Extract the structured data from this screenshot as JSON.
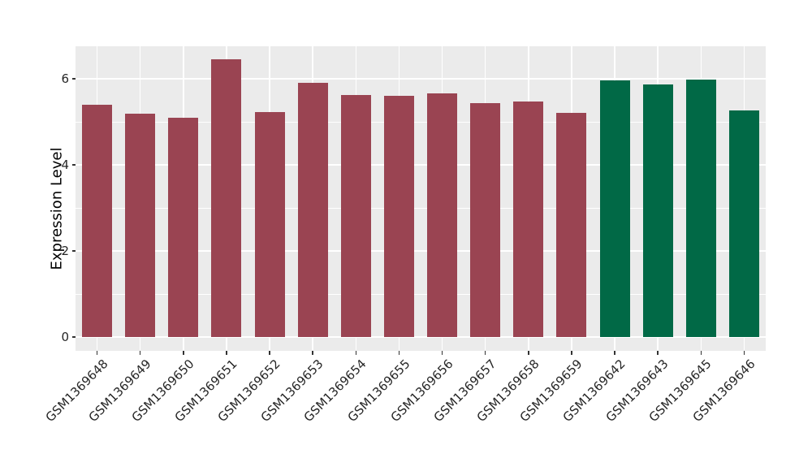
{
  "chart_data": {
    "type": "bar",
    "title": "",
    "xlabel": "",
    "ylabel": "Expression Level",
    "categories": [
      "GSM1369648",
      "GSM1369649",
      "GSM1369650",
      "GSM1369651",
      "GSM1369652",
      "GSM1369653",
      "GSM1369654",
      "GSM1369655",
      "GSM1369656",
      "GSM1369657",
      "GSM1369658",
      "GSM1369659",
      "GSM1369642",
      "GSM1369643",
      "GSM1369645",
      "GSM1369646"
    ],
    "values": [
      5.4,
      5.19,
      5.09,
      6.45,
      5.22,
      5.9,
      5.62,
      5.6,
      5.66,
      5.43,
      5.47,
      5.21,
      5.96,
      5.87,
      5.98,
      5.26
    ],
    "bar_color_keys": [
      "maroon",
      "maroon",
      "maroon",
      "maroon",
      "maroon",
      "maroon",
      "maroon",
      "maroon",
      "maroon",
      "maroon",
      "maroon",
      "maroon",
      "green",
      "green",
      "green",
      "green"
    ],
    "palette": {
      "maroon": "#9A4452",
      "green": "#016946"
    },
    "yticks": [
      0,
      2,
      4,
      6
    ],
    "minor_yticks": [
      1,
      3,
      5
    ],
    "ylim": [
      -0.32,
      6.75
    ],
    "grid": true,
    "legend": false,
    "panel_bg": "#EBEBEB",
    "grid_color": "#FFFFFF",
    "page_bg": "#FFFFFF",
    "text_color": "#262626",
    "tick_mark_color": "#333333"
  }
}
